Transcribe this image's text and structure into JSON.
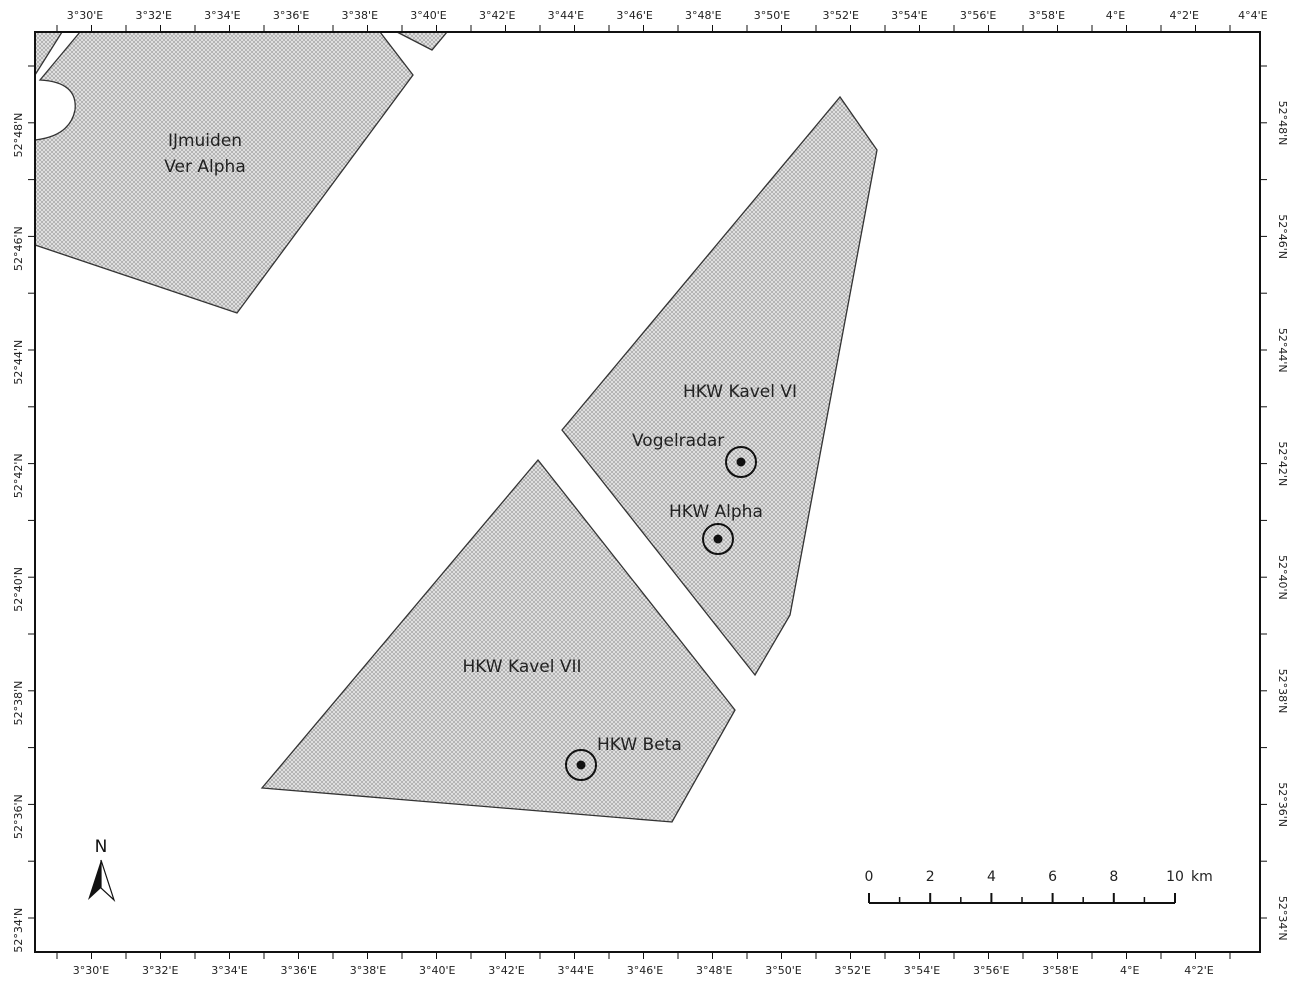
{
  "longitude_labels_top": [
    "3°30'E",
    "3°32'E",
    "3°34'E",
    "3°36'E",
    "3°38'E",
    "3°40'E",
    "3°42'E",
    "3°44'E",
    "3°46'E",
    "3°48'E",
    "3°50'E",
    "3°52'E",
    "3°54'E",
    "3°56'E",
    "3°58'E",
    "4°E",
    "4°2'E",
    "4°4'E"
  ],
  "longitude_labels_bottom": [
    "3°30'E",
    "3°32'E",
    "3°34'E",
    "3°36'E",
    "3°38'E",
    "3°40'E",
    "3°42'E",
    "3°44'E",
    "3°46'E",
    "3°48'E",
    "3°50'E",
    "3°52'E",
    "3°54'E",
    "3°56'E",
    "3°58'E",
    "4°E",
    "4°2'E"
  ],
  "latitude_labels": [
    "52°48'N",
    "52°46'N",
    "52°44'N",
    "52°42'N",
    "52°40'N",
    "52°38'N",
    "52°36'N",
    "52°34'N"
  ],
  "areas": [
    {
      "label": [
        "IJmuiden",
        "Ver Alpha"
      ]
    },
    {
      "label": [
        "HKW Kavel VI"
      ]
    },
    {
      "label": [
        "HKW Kavel VII"
      ]
    }
  ],
  "sites": [
    {
      "label": "Vogelradar"
    },
    {
      "label": "HKW Alpha"
    },
    {
      "label": "HKW Beta"
    }
  ],
  "scale_bar": {
    "ticks": [
      "0",
      "2",
      "4",
      "6",
      "8",
      "10"
    ],
    "unit": "km"
  },
  "north_label": "N"
}
